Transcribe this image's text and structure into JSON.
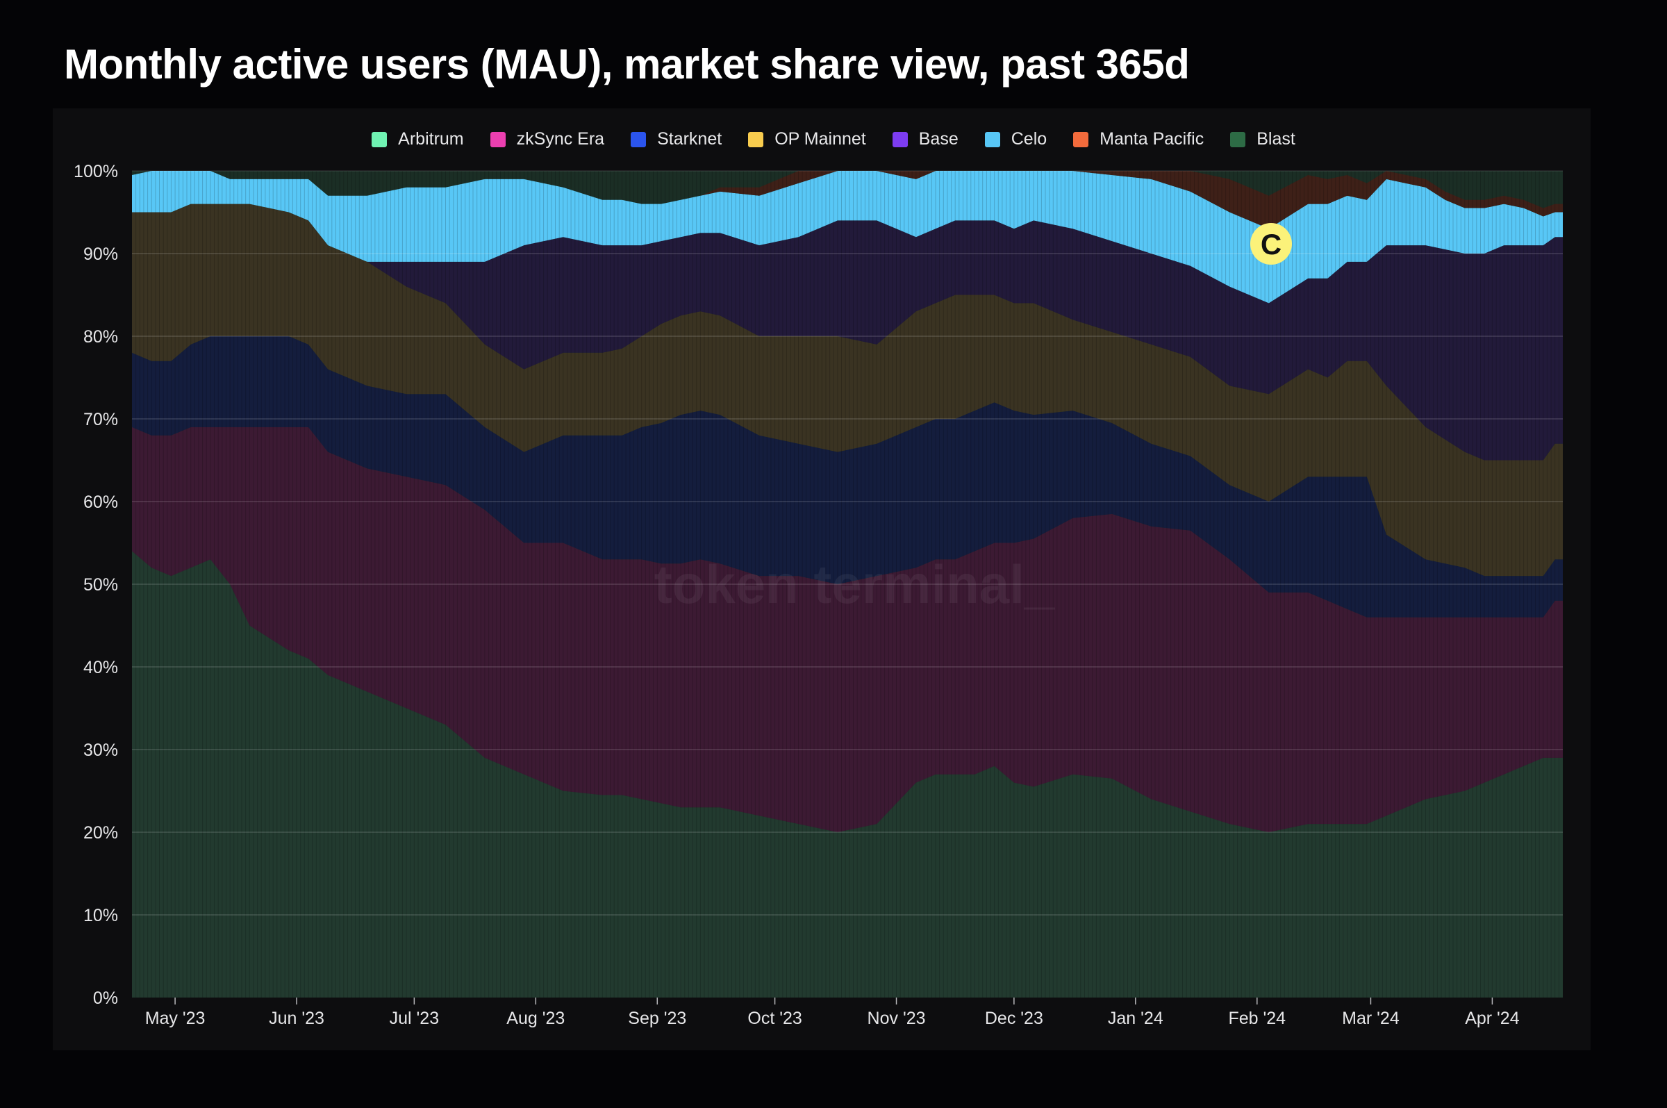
{
  "title": "Monthly active users (MAU), market share view, past 365d",
  "watermark": "token terminal_",
  "marker": {
    "icon": "celo-logo-icon",
    "letter": "C",
    "color": "#fbf27a"
  },
  "chart_data": {
    "type": "area",
    "stacked": true,
    "normalized": true,
    "title": "Monthly active users (MAU), market share view, past 365d",
    "xlabel": "",
    "ylabel": "",
    "ylim": [
      0,
      100
    ],
    "y_ticks": [
      "0%",
      "10%",
      "20%",
      "30%",
      "40%",
      "50%",
      "60%",
      "70%",
      "80%",
      "90%",
      "100%"
    ],
    "x_ticks": [
      "May '23",
      "Jun '23",
      "Jul '23",
      "Aug '23",
      "Sep '23",
      "Oct '23",
      "Nov '23",
      "Dec '23",
      "Jan '24",
      "Feb '24",
      "Mar '24",
      "Apr '24"
    ],
    "x_range": [
      0,
      365
    ],
    "x_tick_days": [
      11,
      42,
      72,
      103,
      134,
      164,
      195,
      225,
      256,
      287,
      316,
      347
    ],
    "grid": true,
    "legend_position": "top-center",
    "x": [
      0,
      5,
      10,
      15,
      20,
      25,
      30,
      40,
      45,
      50,
      60,
      70,
      80,
      90,
      100,
      110,
      120,
      125,
      130,
      135,
      140,
      145,
      150,
      160,
      170,
      180,
      190,
      200,
      205,
      210,
      215,
      220,
      225,
      230,
      240,
      250,
      260,
      270,
      280,
      290,
      300,
      305,
      310,
      315,
      320,
      330,
      335,
      340,
      345,
      350,
      355,
      360,
      363,
      365
    ],
    "series": [
      {
        "name": "Blast",
        "color": "#2d6b45",
        "fill": "#223a2f",
        "values": [
          0,
          0,
          0,
          0,
          0,
          0,
          0,
          0,
          0,
          0,
          0,
          0,
          0,
          0,
          0,
          0,
          0,
          0,
          0,
          0,
          0,
          0,
          0,
          0,
          0,
          0,
          0,
          0,
          0,
          0,
          0,
          0,
          0,
          0,
          0,
          0,
          0,
          0,
          0,
          0,
          0,
          0,
          0,
          0,
          0,
          0,
          0,
          0,
          0,
          0,
          0,
          0,
          0,
          0
        ]
      },
      {
        "name": "Arbitrum",
        "color": "#6ff2b2",
        "fill": "#223a2f",
        "values": [
          54,
          52,
          51,
          52,
          53,
          50,
          45,
          42,
          41,
          39,
          37,
          35,
          33,
          29,
          27,
          25,
          24.5,
          24.5,
          24,
          23.5,
          23,
          23,
          23,
          22,
          21,
          20,
          21,
          26,
          27,
          27,
          27,
          28,
          26,
          25.5,
          27,
          26.5,
          24,
          22.5,
          21,
          20,
          21,
          21,
          21,
          21,
          22,
          24,
          24.5,
          25,
          26,
          27,
          28,
          29,
          29,
          29
        ]
      },
      {
        "name": "zkSync Era",
        "color": "#ec3fb0",
        "fill": "#3c1a33",
        "values": [
          15,
          16,
          17,
          17,
          16,
          19,
          24,
          27,
          28,
          27,
          27,
          28,
          29,
          30,
          28,
          30,
          28.5,
          28.5,
          29,
          29,
          29.5,
          30,
          29.5,
          29,
          30,
          30,
          30,
          26,
          26,
          26,
          27,
          27,
          29,
          30,
          31,
          32,
          33,
          34,
          32,
          29,
          28,
          27,
          26,
          25,
          24,
          22,
          21.5,
          21,
          20,
          19,
          18,
          17,
          19,
          19
        ]
      },
      {
        "name": "Starknet",
        "color": "#2b55ee",
        "fill": "#141d3d",
        "values": [
          9,
          9,
          9,
          10,
          11,
          11,
          11,
          11,
          10,
          10,
          10,
          10,
          11,
          10,
          11,
          13,
          15,
          15,
          16,
          17,
          18,
          18,
          18,
          17,
          16,
          16,
          16,
          17,
          17,
          17,
          17,
          17,
          16,
          15,
          13,
          11,
          10,
          9,
          9,
          11,
          14,
          15,
          16,
          17,
          10,
          7,
          6.5,
          6,
          5,
          5,
          5,
          5,
          5,
          5
        ]
      },
      {
        "name": "OP Mainnet",
        "color": "#f8cc4e",
        "fill": "#3a3322",
        "values": [
          17,
          18,
          18,
          17,
          16,
          16,
          16,
          15,
          15,
          15,
          15,
          13,
          11,
          10,
          10,
          10,
          10,
          10.5,
          11,
          12,
          12,
          12,
          12,
          12,
          13,
          14,
          12,
          14,
          14,
          15,
          14,
          13,
          13,
          13.5,
          11,
          11,
          12,
          12,
          12,
          13,
          13,
          12,
          14,
          14,
          18,
          16,
          15,
          14,
          14,
          14,
          14,
          14,
          14,
          14
        ]
      },
      {
        "name": "Base",
        "color": "#7d3cf1",
        "fill": "#221a3a",
        "values": [
          0,
          0,
          0,
          0,
          0,
          0,
          0,
          0,
          0,
          0,
          0,
          3,
          5,
          10,
          15,
          14,
          13,
          12.5,
          11,
          10,
          9.5,
          9.5,
          10,
          11,
          12,
          14,
          15,
          9,
          9,
          9,
          9,
          9,
          9,
          10,
          11,
          11,
          11,
          11,
          12,
          11,
          11,
          12,
          12,
          12,
          17,
          22,
          23,
          24,
          25,
          26,
          26,
          26,
          25,
          25
        ]
      },
      {
        "name": "Celo",
        "color": "#58c7f6",
        "fill": "#58c7f6",
        "values": [
          4.5,
          5,
          5,
          4,
          4,
          3,
          3,
          4,
          5,
          6,
          8,
          9,
          9,
          10,
          8,
          6,
          5.5,
          5.5,
          5,
          4.5,
          4.5,
          4.5,
          5,
          6,
          6.5,
          6,
          6.5,
          7,
          7,
          7,
          7,
          7,
          7,
          7,
          7.5,
          8,
          9,
          9,
          9,
          9,
          9,
          9,
          8,
          7.5,
          8,
          7,
          6,
          5.5,
          5.5,
          5,
          4.5,
          3.5,
          3,
          3
        ]
      },
      {
        "name": "Manta Pacific",
        "color": "#f36b3c",
        "fill": "#3e2018",
        "values": [
          0,
          0,
          0,
          0,
          0,
          0,
          0,
          0,
          0,
          0,
          0,
          0,
          0,
          0,
          0,
          0,
          0,
          0,
          0,
          0,
          0,
          0,
          0.5,
          1,
          1.5,
          2,
          2,
          2,
          2,
          2,
          2,
          2,
          2,
          2,
          2,
          2.5,
          3,
          3.5,
          4,
          4,
          3.5,
          3,
          2.5,
          2,
          1.5,
          1,
          1,
          1,
          1,
          1,
          1,
          1,
          1,
          1
        ]
      }
    ],
    "overflow_band": {
      "name": "Blast",
      "fill": "#1b2e25"
    }
  }
}
